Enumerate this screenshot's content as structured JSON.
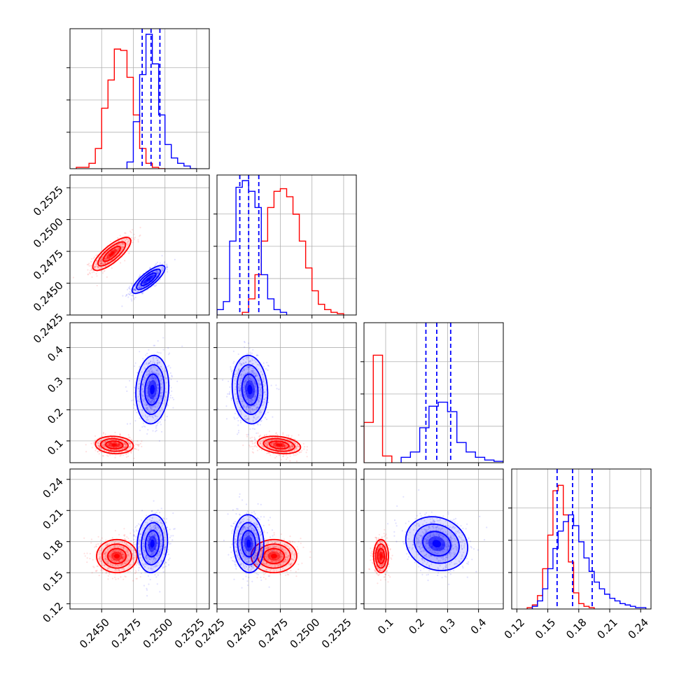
{
  "chart_data": {
    "type": "corner",
    "title": "",
    "series": [
      {
        "color": "#ff0000"
      },
      {
        "color": "#0000ff"
      }
    ],
    "params": [
      {
        "range": [
          0.2425,
          0.2535
        ],
        "ticks": [
          "0.2450",
          "0.2475",
          "0.2500",
          "0.2525"
        ],
        "tick_values": [
          0.245,
          0.2475,
          0.25,
          0.2525
        ]
      },
      {
        "range": [
          0.2425,
          0.2535
        ],
        "ticks": [
          "0.2425",
          "0.2450",
          "0.2475",
          "0.2500",
          "0.2525"
        ],
        "tick_values": [
          0.2425,
          0.245,
          0.2475,
          0.25,
          0.2525
        ]
      },
      {
        "range": [
          0.03,
          0.48
        ],
        "ticks": [
          "0.1",
          "0.2",
          "0.3",
          "0.4"
        ],
        "tick_values": [
          0.1,
          0.2,
          0.3,
          0.4
        ]
      },
      {
        "range": [
          0.115,
          0.25
        ],
        "ticks": [
          "0.12",
          "0.15",
          "0.18",
          "0.21",
          "0.24"
        ],
        "tick_values": [
          0.12,
          0.15,
          0.18,
          0.21,
          0.24
        ]
      }
    ],
    "diagonal": [
      {
        "param": 0,
        "red": {
          "edges": [
            0.243,
            0.244,
            0.2445,
            0.245,
            0.2455,
            0.246,
            0.2465,
            0.247,
            0.2475,
            0.248,
            0.2485,
            0.249,
            0.2495,
            0.25
          ],
          "counts": [
            0.01,
            0.04,
            0.15,
            0.45,
            0.66,
            0.89,
            0.88,
            0.68,
            0.4,
            0.15,
            0.04,
            0.01,
            0.0
          ]
        },
        "blue": {
          "edges": [
            0.247,
            0.2475,
            0.248,
            0.2485,
            0.249,
            0.2495,
            0.25,
            0.2505,
            0.251,
            0.2515,
            0.252,
            0.2525
          ],
          "counts": [
            0.05,
            0.35,
            0.7,
            1.0,
            0.78,
            0.4,
            0.18,
            0.08,
            0.04,
            0.02,
            0.0
          ]
        },
        "blue_quantiles": [
          0.2482,
          0.2489,
          0.2496
        ]
      },
      {
        "param": 1,
        "blue": {
          "edges": [
            0.2425,
            0.243,
            0.2435,
            0.244,
            0.2445,
            0.245,
            0.2455,
            0.246,
            0.2465,
            0.247,
            0.2475,
            0.248
          ],
          "counts": [
            0.04,
            0.1,
            0.55,
            0.95,
            1.0,
            0.92,
            0.8,
            0.3,
            0.12,
            0.04,
            0.02
          ]
        },
        "red": {
          "edges": [
            0.2445,
            0.245,
            0.2455,
            0.246,
            0.2465,
            0.247,
            0.2475,
            0.248,
            0.2485,
            0.249,
            0.2495,
            0.25,
            0.2505,
            0.251,
            0.2515,
            0.252,
            0.2525
          ],
          "counts": [
            0.02,
            0.12,
            0.3,
            0.55,
            0.8,
            0.92,
            0.94,
            0.88,
            0.75,
            0.55,
            0.35,
            0.18,
            0.08,
            0.04,
            0.02,
            0.01
          ]
        },
        "blue_quantiles": [
          0.2443,
          0.245,
          0.2458
        ]
      },
      {
        "param": 2,
        "red": {
          "edges": [
            0.03,
            0.06,
            0.09,
            0.12
          ],
          "counts": [
            0.3,
            0.8,
            0.05
          ]
        },
        "blue": {
          "edges": [
            0.15,
            0.18,
            0.21,
            0.24,
            0.27,
            0.3,
            0.33,
            0.36,
            0.39,
            0.42,
            0.45,
            0.48
          ],
          "counts": [
            0.04,
            0.08,
            0.26,
            0.42,
            0.45,
            0.38,
            0.15,
            0.08,
            0.04,
            0.02,
            0.01
          ]
        },
        "blue_quantiles": [
          0.23,
          0.265,
          0.31
        ]
      },
      {
        "param": 3,
        "red": {
          "edges": [
            0.13,
            0.135,
            0.14,
            0.145,
            0.15,
            0.155,
            0.16,
            0.165,
            0.17,
            0.175,
            0.18,
            0.185,
            0.19,
            0.195
          ],
          "counts": [
            0.01,
            0.03,
            0.1,
            0.3,
            0.55,
            0.88,
            0.92,
            0.7,
            0.35,
            0.12,
            0.04,
            0.02,
            0.01
          ]
        },
        "blue": {
          "edges": [
            0.135,
            0.14,
            0.145,
            0.15,
            0.155,
            0.16,
            0.165,
            0.17,
            0.175,
            0.18,
            0.185,
            0.19,
            0.195,
            0.2,
            0.205,
            0.21,
            0.215,
            0.22,
            0.225,
            0.23,
            0.235,
            0.24,
            0.245
          ],
          "counts": [
            0.02,
            0.06,
            0.15,
            0.3,
            0.45,
            0.58,
            0.65,
            0.7,
            0.62,
            0.5,
            0.38,
            0.28,
            0.2,
            0.15,
            0.11,
            0.08,
            0.06,
            0.04,
            0.03,
            0.02,
            0.01,
            0.01
          ]
        },
        "blue_quantiles": [
          0.159,
          0.174,
          0.193
        ]
      }
    ],
    "offdiagonal": [
      {
        "x": 0,
        "y": 1,
        "red": {
          "mean": [
            0.2458,
            0.2473
          ],
          "sd": [
            0.00075,
            0.00065
          ],
          "rho": 0.78
        },
        "blue": {
          "mean": [
            0.2487,
            0.2453
          ],
          "sd": [
            0.00065,
            0.00055
          ],
          "rho": 0.8
        }
      },
      {
        "x": 0,
        "y": 2,
        "red": {
          "mean": [
            0.246,
            0.087
          ],
          "sd": [
            0.00075,
            0.014
          ],
          "rho": -0.1
        },
        "blue": {
          "mean": [
            0.249,
            0.265
          ],
          "sd": [
            0.00065,
            0.055
          ],
          "rho": 0.1
        }
      },
      {
        "x": 1,
        "y": 2,
        "red": {
          "mean": [
            0.2474,
            0.087
          ],
          "sd": [
            0.00085,
            0.014
          ],
          "rho": -0.25
        },
        "blue": {
          "mean": [
            0.2451,
            0.265
          ],
          "sd": [
            0.0007,
            0.055
          ],
          "rho": -0.1
        }
      },
      {
        "x": 0,
        "y": 3,
        "red": {
          "mean": [
            0.2462,
            0.166
          ],
          "sd": [
            0.0008,
            0.008
          ],
          "rho": 0.0
        },
        "blue": {
          "mean": [
            0.249,
            0.178
          ],
          "sd": [
            0.0006,
            0.014
          ],
          "rho": 0.1
        }
      },
      {
        "x": 1,
        "y": 3,
        "red": {
          "mean": [
            0.247,
            0.166
          ],
          "sd": [
            0.0009,
            0.008
          ],
          "rho": 0.0
        },
        "blue": {
          "mean": [
            0.245,
            0.178
          ],
          "sd": [
            0.0006,
            0.014
          ],
          "rho": -0.05
        }
      },
      {
        "x": 2,
        "y": 3,
        "red": {
          "mean": [
            0.085,
            0.166
          ],
          "sd": [
            0.012,
            0.008
          ],
          "rho": 0.0
        },
        "blue": {
          "mean": [
            0.265,
            0.178
          ],
          "sd": [
            0.05,
            0.013
          ],
          "rho": -0.15
        }
      }
    ],
    "grid": true
  }
}
